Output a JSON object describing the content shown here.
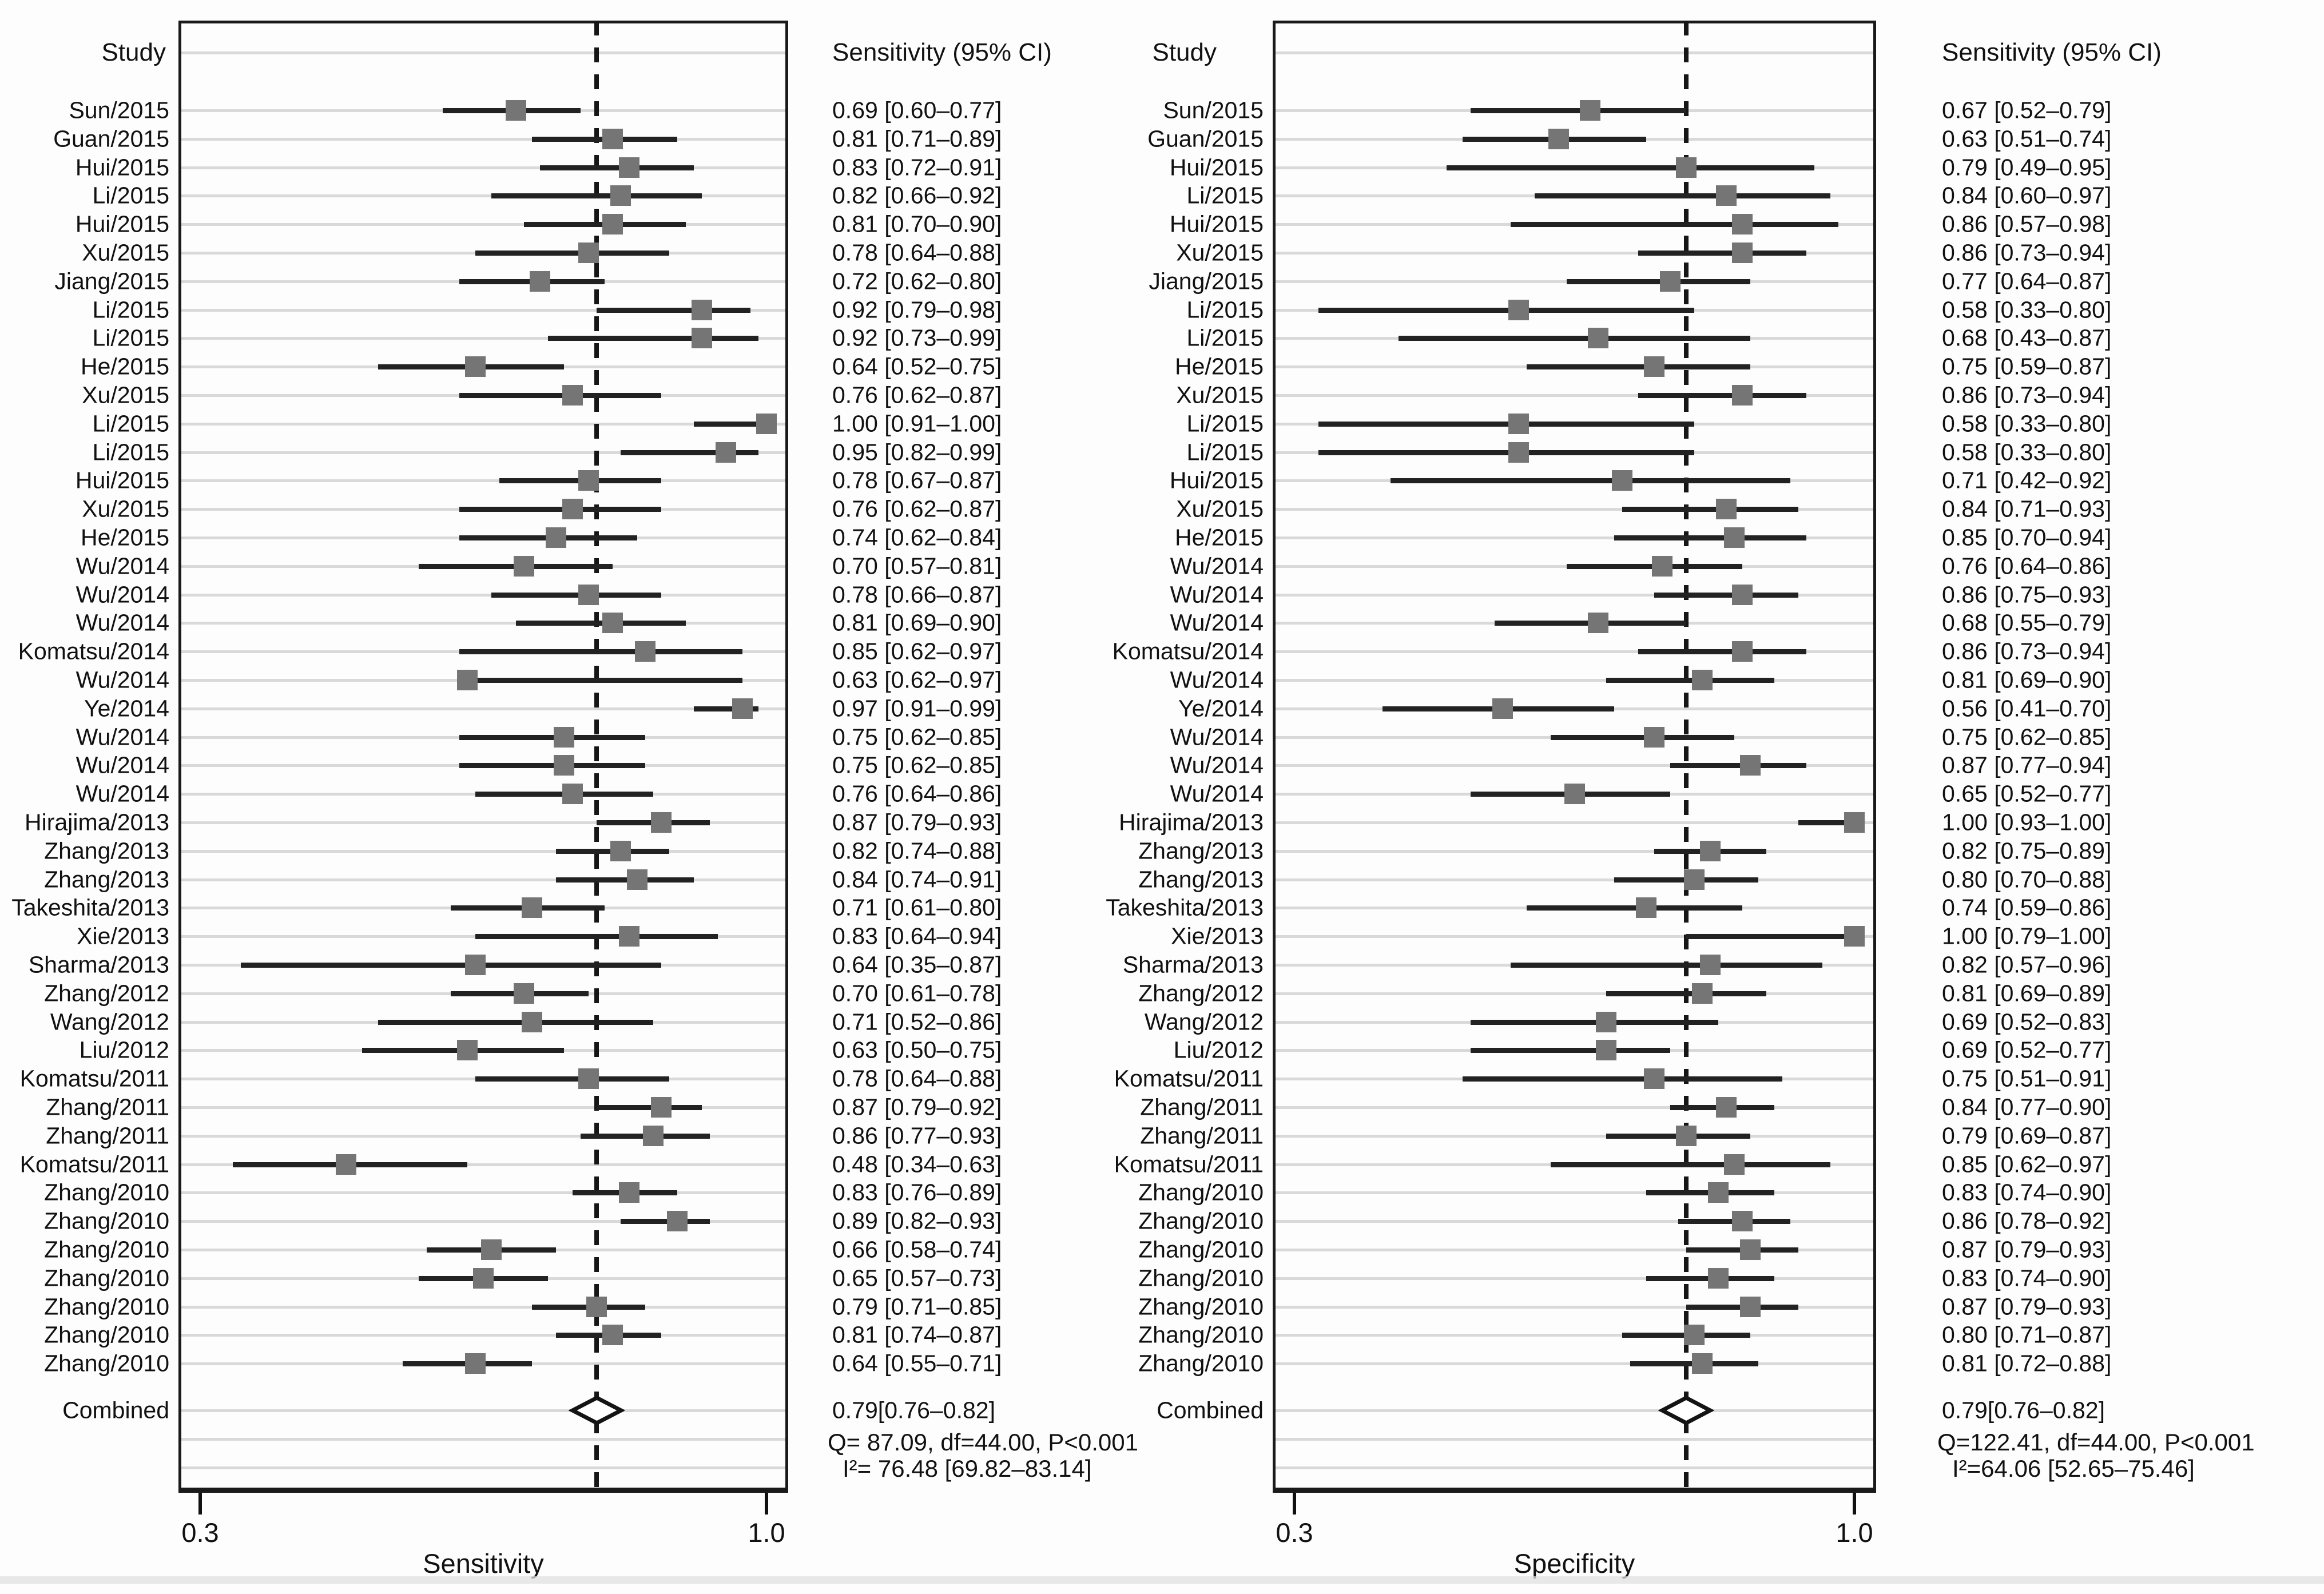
{
  "chart_data": [
    {
      "type": "forest",
      "panel": "sensitivity",
      "study_header": "Study",
      "ci_header": "Sensitivity (95% CI)",
      "xlabel": "Sensitivity",
      "xlim": [
        0.3,
        1.0
      ],
      "xticks": [
        "0.3",
        "1.0"
      ],
      "grid": "light-horizontal-row-guides",
      "dashed_line_at": 0.79,
      "rows": [
        {
          "study": "Sun/2015",
          "est": 0.69,
          "low": 0.6,
          "high": 0.77,
          "text": "0.69 [0.60–0.77]"
        },
        {
          "study": "Guan/2015",
          "est": 0.81,
          "low": 0.71,
          "high": 0.89,
          "text": "0.81 [0.71–0.89]"
        },
        {
          "study": "Hui/2015",
          "est": 0.83,
          "low": 0.72,
          "high": 0.91,
          "text": "0.83 [0.72–0.91]"
        },
        {
          "study": "Li/2015",
          "est": 0.82,
          "low": 0.66,
          "high": 0.92,
          "text": "0.82 [0.66–0.92]"
        },
        {
          "study": "Hui/2015",
          "est": 0.81,
          "low": 0.7,
          "high": 0.9,
          "text": "0.81 [0.70–0.90]"
        },
        {
          "study": "Xu/2015",
          "est": 0.78,
          "low": 0.64,
          "high": 0.88,
          "text": "0.78 [0.64–0.88]"
        },
        {
          "study": "Jiang/2015",
          "est": 0.72,
          "low": 0.62,
          "high": 0.8,
          "text": "0.72 [0.62–0.80]"
        },
        {
          "study": "Li/2015",
          "est": 0.92,
          "low": 0.79,
          "high": 0.98,
          "text": "0.92 [0.79–0.98]"
        },
        {
          "study": "Li/2015",
          "est": 0.92,
          "low": 0.73,
          "high": 0.99,
          "text": "0.92 [0.73–0.99]"
        },
        {
          "study": "He/2015",
          "est": 0.64,
          "low": 0.52,
          "high": 0.75,
          "text": "0.64 [0.52–0.75]"
        },
        {
          "study": "Xu/2015",
          "est": 0.76,
          "low": 0.62,
          "high": 0.87,
          "text": "0.76 [0.62–0.87]"
        },
        {
          "study": "Li/2015",
          "est": 1.0,
          "low": 0.91,
          "high": 1.0,
          "text": "1.00 [0.91–1.00]"
        },
        {
          "study": "Li/2015",
          "est": 0.95,
          "low": 0.82,
          "high": 0.99,
          "text": "0.95 [0.82–0.99]"
        },
        {
          "study": "Hui/2015",
          "est": 0.78,
          "low": 0.67,
          "high": 0.87,
          "text": "0.78 [0.67–0.87]"
        },
        {
          "study": "Xu/2015",
          "est": 0.76,
          "low": 0.62,
          "high": 0.87,
          "text": "0.76 [0.62–0.87]"
        },
        {
          "study": "He/2015",
          "est": 0.74,
          "low": 0.62,
          "high": 0.84,
          "text": "0.74 [0.62–0.84]"
        },
        {
          "study": "Wu/2014",
          "est": 0.7,
          "low": 0.57,
          "high": 0.81,
          "text": "0.70 [0.57–0.81]"
        },
        {
          "study": "Wu/2014",
          "est": 0.78,
          "low": 0.66,
          "high": 0.87,
          "text": "0.78 [0.66–0.87]"
        },
        {
          "study": "Wu/2014",
          "est": 0.81,
          "low": 0.69,
          "high": 0.9,
          "text": "0.81 [0.69–0.90]"
        },
        {
          "study": "Komatsu/2014",
          "est": 0.85,
          "low": 0.62,
          "high": 0.97,
          "text": "0.85 [0.62–0.97]"
        },
        {
          "study": "Wu/2014",
          "est": 0.63,
          "low": 0.62,
          "high": 0.97,
          "text": "0.63 [0.62–0.97]"
        },
        {
          "study": "Ye/2014",
          "est": 0.97,
          "low": 0.91,
          "high": 0.99,
          "text": "0.97 [0.91–0.99]"
        },
        {
          "study": "Wu/2014",
          "est": 0.75,
          "low": 0.62,
          "high": 0.85,
          "text": "0.75 [0.62–0.85]"
        },
        {
          "study": "Wu/2014",
          "est": 0.75,
          "low": 0.62,
          "high": 0.85,
          "text": "0.75 [0.62–0.85]"
        },
        {
          "study": "Wu/2014",
          "est": 0.76,
          "low": 0.64,
          "high": 0.86,
          "text": "0.76 [0.64–0.86]"
        },
        {
          "study": "Hirajima/2013",
          "est": 0.87,
          "low": 0.79,
          "high": 0.93,
          "text": "0.87 [0.79–0.93]"
        },
        {
          "study": "Zhang/2013",
          "est": 0.82,
          "low": 0.74,
          "high": 0.88,
          "text": "0.82 [0.74–0.88]"
        },
        {
          "study": "Zhang/2013",
          "est": 0.84,
          "low": 0.74,
          "high": 0.91,
          "text": "0.84 [0.74–0.91]"
        },
        {
          "study": "Takeshita/2013",
          "est": 0.71,
          "low": 0.61,
          "high": 0.8,
          "text": "0.71 [0.61–0.80]"
        },
        {
          "study": "Xie/2013",
          "est": 0.83,
          "low": 0.64,
          "high": 0.94,
          "text": "0.83 [0.64–0.94]"
        },
        {
          "study": "Sharma/2013",
          "est": 0.64,
          "low": 0.35,
          "high": 0.87,
          "text": "0.64 [0.35–0.87]"
        },
        {
          "study": "Zhang/2012",
          "est": 0.7,
          "low": 0.61,
          "high": 0.78,
          "text": "0.70 [0.61–0.78]"
        },
        {
          "study": "Wang/2012",
          "est": 0.71,
          "low": 0.52,
          "high": 0.86,
          "text": "0.71 [0.52–0.86]"
        },
        {
          "study": "Liu/2012",
          "est": 0.63,
          "low": 0.5,
          "high": 0.75,
          "text": "0.63 [0.50–0.75]"
        },
        {
          "study": "Komatsu/2011",
          "est": 0.78,
          "low": 0.64,
          "high": 0.88,
          "text": "0.78 [0.64–0.88]"
        },
        {
          "study": "Zhang/2011",
          "est": 0.87,
          "low": 0.79,
          "high": 0.92,
          "text": "0.87 [0.79–0.92]"
        },
        {
          "study": "Zhang/2011",
          "est": 0.86,
          "low": 0.77,
          "high": 0.93,
          "text": "0.86 [0.77–0.93]"
        },
        {
          "study": "Komatsu/2011",
          "est": 0.48,
          "low": 0.34,
          "high": 0.63,
          "text": "0.48 [0.34–0.63]"
        },
        {
          "study": "Zhang/2010",
          "est": 0.83,
          "low": 0.76,
          "high": 0.89,
          "text": "0.83 [0.76–0.89]"
        },
        {
          "study": "Zhang/2010",
          "est": 0.89,
          "low": 0.82,
          "high": 0.93,
          "text": "0.89 [0.82–0.93]"
        },
        {
          "study": "Zhang/2010",
          "est": 0.66,
          "low": 0.58,
          "high": 0.74,
          "text": "0.66 [0.58–0.74]"
        },
        {
          "study": "Zhang/2010",
          "est": 0.65,
          "low": 0.57,
          "high": 0.73,
          "text": "0.65 [0.57–0.73]"
        },
        {
          "study": "Zhang/2010",
          "est": 0.79,
          "low": 0.71,
          "high": 0.85,
          "text": "0.79 [0.71–0.85]"
        },
        {
          "study": "Zhang/2010",
          "est": 0.81,
          "low": 0.74,
          "high": 0.87,
          "text": "0.81 [0.74–0.87]"
        },
        {
          "study": "Zhang/2010",
          "est": 0.64,
          "low": 0.55,
          "high": 0.71,
          "text": "0.64 [0.55–0.71]"
        }
      ],
      "combined": {
        "label": "Combined",
        "est": 0.79,
        "low": 0.76,
        "high": 0.82,
        "text": "0.79[0.76–0.82]",
        "q": "Q= 87.09, df=44.00, P<0.001",
        "i2": "I²= 76.48 [69.82–83.14]"
      }
    },
    {
      "type": "forest",
      "panel": "specificity",
      "study_header": "Study",
      "ci_header": "Sensitivity (95% CI)",
      "xlabel": "Specificity",
      "xlim": [
        0.3,
        1.0
      ],
      "xticks": [
        "0.3",
        "1.0"
      ],
      "grid": "light-horizontal-row-guides",
      "dashed_line_at": 0.79,
      "rows": [
        {
          "study": "Sun/2015",
          "est": 0.67,
          "low": 0.52,
          "high": 0.79,
          "text": "0.67 [0.52–0.79]"
        },
        {
          "study": "Guan/2015",
          "est": 0.63,
          "low": 0.51,
          "high": 0.74,
          "text": "0.63 [0.51–0.74]"
        },
        {
          "study": "Hui/2015",
          "est": 0.79,
          "low": 0.49,
          "high": 0.95,
          "text": "0.79 [0.49–0.95]"
        },
        {
          "study": "Li/2015",
          "est": 0.84,
          "low": 0.6,
          "high": 0.97,
          "text": "0.84 [0.60–0.97]"
        },
        {
          "study": "Hui/2015",
          "est": 0.86,
          "low": 0.57,
          "high": 0.98,
          "text": "0.86 [0.57–0.98]"
        },
        {
          "study": "Xu/2015",
          "est": 0.86,
          "low": 0.73,
          "high": 0.94,
          "text": "0.86 [0.73–0.94]"
        },
        {
          "study": "Jiang/2015",
          "est": 0.77,
          "low": 0.64,
          "high": 0.87,
          "text": "0.77 [0.64–0.87]"
        },
        {
          "study": "Li/2015",
          "est": 0.58,
          "low": 0.33,
          "high": 0.8,
          "text": "0.58 [0.33–0.80]"
        },
        {
          "study": "Li/2015",
          "est": 0.68,
          "low": 0.43,
          "high": 0.87,
          "text": "0.68 [0.43–0.87]"
        },
        {
          "study": "He/2015",
          "est": 0.75,
          "low": 0.59,
          "high": 0.87,
          "text": "0.75 [0.59–0.87]"
        },
        {
          "study": "Xu/2015",
          "est": 0.86,
          "low": 0.73,
          "high": 0.94,
          "text": "0.86 [0.73–0.94]"
        },
        {
          "study": "Li/2015",
          "est": 0.58,
          "low": 0.33,
          "high": 0.8,
          "text": "0.58 [0.33–0.80]"
        },
        {
          "study": "Li/2015",
          "est": 0.58,
          "low": 0.33,
          "high": 0.8,
          "text": "0.58 [0.33–0.80]"
        },
        {
          "study": "Hui/2015",
          "est": 0.71,
          "low": 0.42,
          "high": 0.92,
          "text": "0.71 [0.42–0.92]"
        },
        {
          "study": "Xu/2015",
          "est": 0.84,
          "low": 0.71,
          "high": 0.93,
          "text": "0.84 [0.71–0.93]"
        },
        {
          "study": "He/2015",
          "est": 0.85,
          "low": 0.7,
          "high": 0.94,
          "text": "0.85 [0.70–0.94]"
        },
        {
          "study": "Wu/2014",
          "est": 0.76,
          "low": 0.64,
          "high": 0.86,
          "text": "0.76 [0.64–0.86]"
        },
        {
          "study": "Wu/2014",
          "est": 0.86,
          "low": 0.75,
          "high": 0.93,
          "text": "0.86 [0.75–0.93]"
        },
        {
          "study": "Wu/2014",
          "est": 0.68,
          "low": 0.55,
          "high": 0.79,
          "text": "0.68 [0.55–0.79]"
        },
        {
          "study": "Komatsu/2014",
          "est": 0.86,
          "low": 0.73,
          "high": 0.94,
          "text": "0.86 [0.73–0.94]"
        },
        {
          "study": "Wu/2014",
          "est": 0.81,
          "low": 0.69,
          "high": 0.9,
          "text": "0.81 [0.69–0.90]"
        },
        {
          "study": "Ye/2014",
          "est": 0.56,
          "low": 0.41,
          "high": 0.7,
          "text": "0.56 [0.41–0.70]"
        },
        {
          "study": "Wu/2014",
          "est": 0.75,
          "low": 0.62,
          "high": 0.85,
          "text": "0.75 [0.62–0.85]"
        },
        {
          "study": "Wu/2014",
          "est": 0.87,
          "low": 0.77,
          "high": 0.94,
          "text": "0.87 [0.77–0.94]"
        },
        {
          "study": "Wu/2014",
          "est": 0.65,
          "low": 0.52,
          "high": 0.77,
          "text": "0.65 [0.52–0.77]"
        },
        {
          "study": "Hirajima/2013",
          "est": 1.0,
          "low": 0.93,
          "high": 1.0,
          "text": "1.00 [0.93–1.00]"
        },
        {
          "study": "Zhang/2013",
          "est": 0.82,
          "low": 0.75,
          "high": 0.89,
          "text": "0.82 [0.75–0.89]"
        },
        {
          "study": "Zhang/2013",
          "est": 0.8,
          "low": 0.7,
          "high": 0.88,
          "text": "0.80 [0.70–0.88]"
        },
        {
          "study": "Takeshita/2013",
          "est": 0.74,
          "low": 0.59,
          "high": 0.86,
          "text": "0.74 [0.59–0.86]"
        },
        {
          "study": "Xie/2013",
          "est": 1.0,
          "low": 0.79,
          "high": 1.0,
          "text": "1.00 [0.79–1.00]"
        },
        {
          "study": "Sharma/2013",
          "est": 0.82,
          "low": 0.57,
          "high": 0.96,
          "text": "0.82 [0.57–0.96]"
        },
        {
          "study": "Zhang/2012",
          "est": 0.81,
          "low": 0.69,
          "high": 0.89,
          "text": "0.81 [0.69–0.89]"
        },
        {
          "study": "Wang/2012",
          "est": 0.69,
          "low": 0.52,
          "high": 0.83,
          "text": "0.69 [0.52–0.83]"
        },
        {
          "study": "Liu/2012",
          "est": 0.69,
          "low": 0.52,
          "high": 0.77,
          "text": "0.69 [0.52–0.77]"
        },
        {
          "study": "Komatsu/2011",
          "est": 0.75,
          "low": 0.51,
          "high": 0.91,
          "text": "0.75 [0.51–0.91]"
        },
        {
          "study": "Zhang/2011",
          "est": 0.84,
          "low": 0.77,
          "high": 0.9,
          "text": "0.84 [0.77–0.90]"
        },
        {
          "study": "Zhang/2011",
          "est": 0.79,
          "low": 0.69,
          "high": 0.87,
          "text": "0.79 [0.69–0.87]"
        },
        {
          "study": "Komatsu/2011",
          "est": 0.85,
          "low": 0.62,
          "high": 0.97,
          "text": "0.85 [0.62–0.97]"
        },
        {
          "study": "Zhang/2010",
          "est": 0.83,
          "low": 0.74,
          "high": 0.9,
          "text": "0.83 [0.74–0.90]"
        },
        {
          "study": "Zhang/2010",
          "est": 0.86,
          "low": 0.78,
          "high": 0.92,
          "text": "0.86 [0.78–0.92]"
        },
        {
          "study": "Zhang/2010",
          "est": 0.87,
          "low": 0.79,
          "high": 0.93,
          "text": "0.87 [0.79–0.93]"
        },
        {
          "study": "Zhang/2010",
          "est": 0.83,
          "low": 0.74,
          "high": 0.9,
          "text": "0.83 [0.74–0.90]"
        },
        {
          "study": "Zhang/2010",
          "est": 0.87,
          "low": 0.79,
          "high": 0.93,
          "text": "0.87 [0.79–0.93]"
        },
        {
          "study": "Zhang/2010",
          "est": 0.8,
          "low": 0.71,
          "high": 0.87,
          "text": "0.80 [0.71–0.87]"
        },
        {
          "study": "Zhang/2010",
          "est": 0.81,
          "low": 0.72,
          "high": 0.88,
          "text": "0.81 [0.72–0.88]"
        }
      ],
      "combined": {
        "label": "Combined",
        "est": 0.79,
        "low": 0.76,
        "high": 0.82,
        "text": "0.79[0.76–0.82]",
        "q": "Q=122.41, df=44.00, P<0.001",
        "i2": "I²=64.06 [52.65–75.46]"
      }
    }
  ]
}
